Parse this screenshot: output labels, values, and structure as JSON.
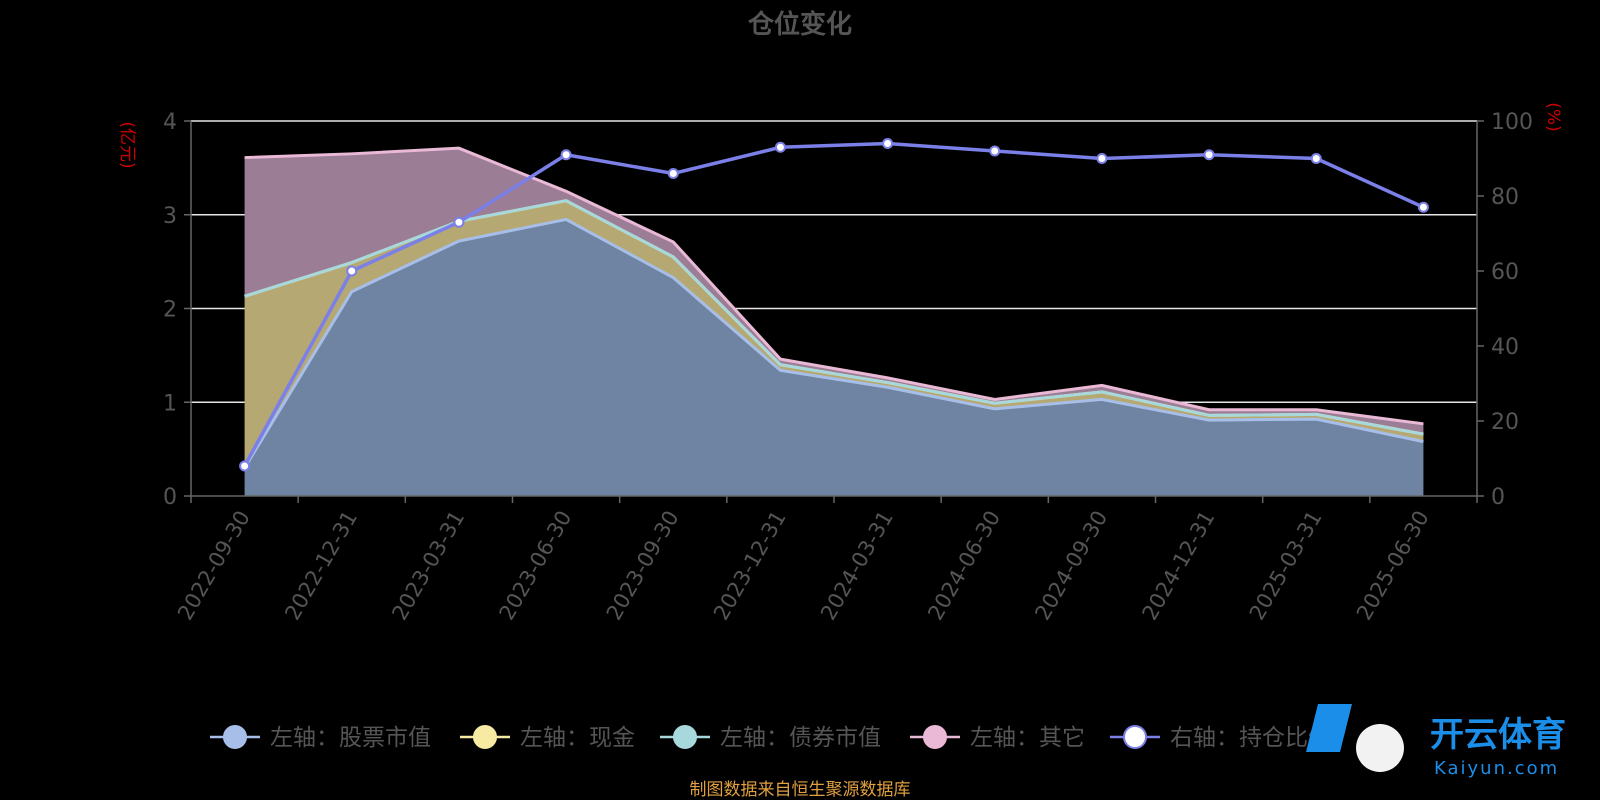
{
  "chart_data": {
    "type": "area",
    "title": "仓位变化",
    "y_left_unit": "(亿元)",
    "y_right_unit": "(%)",
    "y_left_range": [
      0,
      4
    ],
    "y_left_ticks": [
      "0",
      "1",
      "2",
      "3",
      "4"
    ],
    "y_right_range": [
      0,
      100
    ],
    "y_right_ticks": [
      "0",
      "20",
      "40",
      "60",
      "80",
      "100"
    ],
    "categories": [
      "2022-09-30",
      "2022-12-31",
      "2023-03-31",
      "2023-06-30",
      "2023-09-30",
      "2023-12-31",
      "2024-03-31",
      "2024-06-30",
      "2024-09-30",
      "2024-12-31",
      "2025-03-31",
      "2025-06-30"
    ],
    "series": [
      {
        "name": "左轴：股票市值",
        "axis": "left",
        "color": "#a7bfe8",
        "values": [
          0.3,
          2.18,
          2.72,
          2.95,
          2.33,
          1.34,
          1.16,
          0.93,
          1.03,
          0.81,
          0.82,
          0.58
        ]
      },
      {
        "name": "左轴：现金",
        "axis": "left",
        "color": "#f7eaa3",
        "values": [
          1.83,
          0.31,
          0.21,
          0.2,
          0.22,
          0.06,
          0.05,
          0.06,
          0.08,
          0.05,
          0.05,
          0.08
        ]
      },
      {
        "name": "左轴：债券市值",
        "axis": "left",
        "color": "#a6d8dc",
        "values": [
          0,
          0,
          0,
          0,
          0,
          0,
          0,
          0,
          0,
          0,
          0,
          0
        ]
      },
      {
        "name": "左轴：其它",
        "axis": "left",
        "color": "#e9b9d6",
        "values": [
          1.48,
          1.16,
          0.78,
          0.1,
          0.16,
          0.06,
          0.05,
          0.04,
          0.07,
          0.06,
          0.05,
          0.11
        ]
      },
      {
        "name": "右轴：持仓比例",
        "axis": "right",
        "color": "#7b7fe8",
        "values": [
          8,
          60,
          73,
          91,
          86,
          93,
          94,
          92,
          90,
          91,
          90,
          77
        ]
      }
    ],
    "source": "制图数据来自恒生聚源数据库"
  },
  "watermark": {
    "brand": "开云体育",
    "domain": "Kaiyun.com"
  }
}
